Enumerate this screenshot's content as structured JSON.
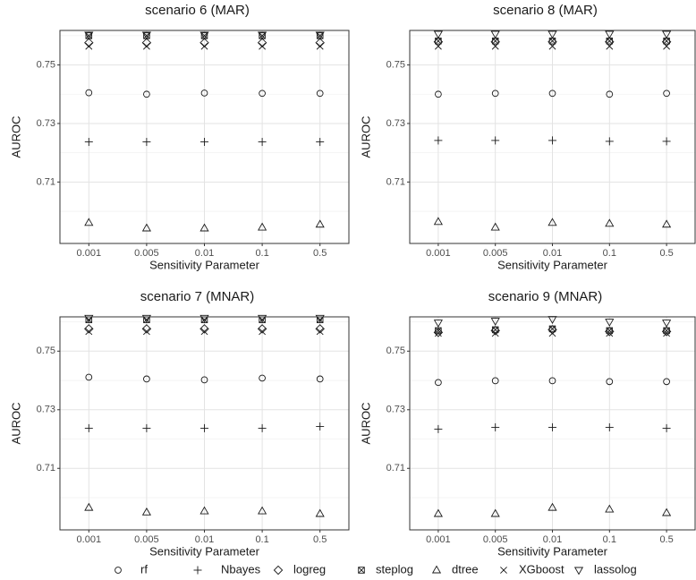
{
  "chart_data": [
    {
      "type": "scatter",
      "title": "scenario 6 (MAR)",
      "x_label": "Sensitivity Parameter",
      "y_label": "AUROC",
      "categories": [
        "0.001",
        "0.005",
        "0.01",
        "0.1",
        "0.5"
      ],
      "ylim": [
        0.689,
        0.7618
      ],
      "yticks": [
        0.71,
        0.73,
        0.75
      ],
      "yminor": [
        0.7,
        0.72,
        0.74,
        0.76
      ],
      "grid": true,
      "series": [
        {
          "values": [
            0.7405,
            0.74,
            0.7404,
            0.7403,
            0.7403
          ]
        },
        {
          "values": [
            0.7237,
            0.7237,
            0.7237,
            0.7237,
            0.7237
          ]
        },
        {
          "values": [
            0.7576,
            0.7576,
            0.7576,
            0.7576,
            0.7576
          ]
        },
        {
          "values": [
            0.76,
            0.76,
            0.76,
            0.76,
            0.76
          ]
        },
        {
          "values": [
            0.6961,
            0.6942,
            0.6942,
            0.6945,
            0.6955
          ]
        },
        {
          "values": [
            0.7564,
            0.7564,
            0.7564,
            0.7564,
            0.7564
          ]
        },
        {
          "values": [
            0.7603,
            0.7603,
            0.7603,
            0.7603,
            0.7603
          ]
        }
      ]
    },
    {
      "type": "scatter",
      "title": "scenario 8 (MAR)",
      "x_label": "Sensitivity Parameter",
      "y_label": "AUROC",
      "categories": [
        "0.001",
        "0.005",
        "0.01",
        "0.1",
        "0.5"
      ],
      "ylim": [
        0.689,
        0.7618
      ],
      "yticks": [
        0.71,
        0.73,
        0.75
      ],
      "yminor": [
        0.7,
        0.72,
        0.74,
        0.76
      ],
      "grid": true,
      "series": [
        {
          "values": [
            0.74,
            0.7403,
            0.7403,
            0.74,
            0.7403
          ]
        },
        {
          "values": [
            0.7242,
            0.7242,
            0.7242,
            0.7239,
            0.7239
          ]
        },
        {
          "values": [
            0.7579,
            0.7579,
            0.7579,
            0.7579,
            0.7579
          ]
        },
        {
          "values": [
            0.7582,
            0.7582,
            0.7582,
            0.7582,
            0.7582
          ]
        },
        {
          "values": [
            0.6964,
            0.6945,
            0.6961,
            0.6958,
            0.6955
          ]
        },
        {
          "values": [
            0.7564,
            0.7564,
            0.7564,
            0.7564,
            0.7564
          ]
        },
        {
          "values": [
            0.7606,
            0.7606,
            0.7606,
            0.7606,
            0.7606
          ]
        }
      ]
    },
    {
      "type": "scatter",
      "title": "scenario 7 (MNAR)",
      "x_label": "Sensitivity Parameter",
      "y_label": "AUROC",
      "categories": [
        "0.001",
        "0.005",
        "0.01",
        "0.1",
        "0.5"
      ],
      "ylim": [
        0.689,
        0.7617
      ],
      "yticks": [
        0.71,
        0.73,
        0.75
      ],
      "yminor": [
        0.7,
        0.72,
        0.74,
        0.76
      ],
      "grid": true,
      "series": [
        {
          "values": [
            0.7411,
            0.7405,
            0.7402,
            0.7408,
            0.7405
          ]
        },
        {
          "values": [
            0.7237,
            0.7237,
            0.7237,
            0.7237,
            0.7243
          ]
        },
        {
          "values": [
            0.7576,
            0.7576,
            0.7576,
            0.7576,
            0.7576
          ]
        },
        {
          "values": [
            0.7607,
            0.7607,
            0.7607,
            0.7607,
            0.7607
          ]
        },
        {
          "values": [
            0.6966,
            0.695,
            0.6954,
            0.6954,
            0.6945
          ]
        },
        {
          "values": [
            0.7567,
            0.7567,
            0.7567,
            0.7567,
            0.7567
          ]
        },
        {
          "values": [
            0.7613,
            0.7613,
            0.7613,
            0.7613,
            0.7613
          ]
        }
      ]
    },
    {
      "type": "scatter",
      "title": "scenario 9 (MNAR)",
      "x_label": "Sensitivity Parameter",
      "y_label": "AUROC",
      "categories": [
        "0.001",
        "0.005",
        "0.01",
        "0.1",
        "0.5"
      ],
      "ylim": [
        0.689,
        0.7617
      ],
      "yticks": [
        0.71,
        0.73,
        0.75
      ],
      "yminor": [
        0.7,
        0.72,
        0.74,
        0.76
      ],
      "grid": true,
      "series": [
        {
          "values": [
            0.7393,
            0.7399,
            0.7399,
            0.7396,
            0.7396
          ]
        },
        {
          "values": [
            0.7234,
            0.724,
            0.724,
            0.724,
            0.7237
          ]
        },
        {
          "values": [
            0.7564,
            0.757,
            0.7573,
            0.7567,
            0.7567
          ]
        },
        {
          "values": [
            0.757,
            0.7573,
            0.7576,
            0.757,
            0.757
          ]
        },
        {
          "values": [
            0.6945,
            0.6945,
            0.6966,
            0.696,
            0.6948
          ]
        },
        {
          "values": [
            0.7561,
            0.7561,
            0.7561,
            0.7561,
            0.7561
          ]
        },
        {
          "values": [
            0.7597,
            0.7603,
            0.7609,
            0.76,
            0.7597
          ]
        }
      ]
    }
  ],
  "legend": [
    {
      "name": "rf",
      "marker": "circle"
    },
    {
      "name": "Nbayes",
      "marker": "plus"
    },
    {
      "name": "logreg",
      "marker": "diamond"
    },
    {
      "name": "steplog",
      "marker": "boxx"
    },
    {
      "name": "dtree",
      "marker": "triangle"
    },
    {
      "name": "XGboost",
      "marker": "x"
    },
    {
      "name": "lassolog",
      "marker": "tridown"
    }
  ]
}
